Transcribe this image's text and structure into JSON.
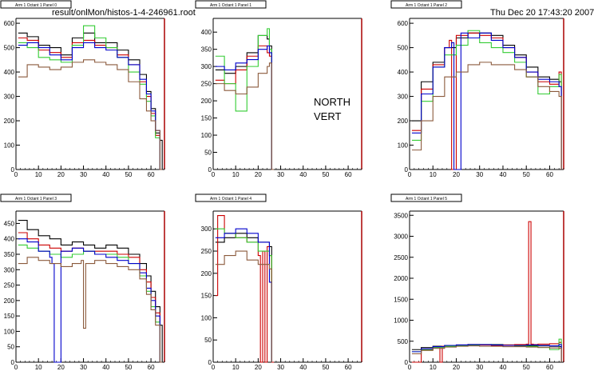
{
  "header": {
    "filename": "result/onlMon/histos-1-4-246961.root",
    "datetime": "Thu Dec 20 17:43:20 2007",
    "label_line1": "NORTH",
    "label_line2": "VERT"
  },
  "colors": {
    "black": "#000000",
    "red": "#cc0000",
    "green": "#33cc33",
    "blue": "#0000cc",
    "brown": "#8b5a3c",
    "frame_right": "#aa0000"
  },
  "chart_data": [
    {
      "type": "line",
      "title": "Arm 1 Octant 1 Panel 0",
      "xlim": [
        0,
        66
      ],
      "ylim": [
        0,
        620
      ],
      "xticks": [
        0,
        10,
        20,
        30,
        40,
        50,
        60
      ],
      "yticks": [
        0,
        100,
        200,
        300,
        400,
        500,
        600
      ],
      "series": [
        {
          "color": "#000000",
          "x": [
            1,
            5,
            10,
            15,
            20,
            25,
            30,
            35,
            40,
            45,
            50,
            55,
            58,
            60,
            62,
            64
          ],
          "y": [
            560,
            545,
            510,
            500,
            470,
            540,
            560,
            520,
            520,
            490,
            450,
            390,
            320,
            250,
            150,
            120
          ]
        },
        {
          "color": "#cc0000",
          "x": [
            1,
            5,
            10,
            15,
            20,
            25,
            30,
            35,
            40,
            45,
            50,
            55,
            58,
            60,
            62,
            64
          ],
          "y": [
            540,
            530,
            490,
            480,
            460,
            520,
            530,
            510,
            500,
            470,
            430,
            360,
            300,
            230,
            140,
            0
          ]
        },
        {
          "color": "#33cc33",
          "x": [
            1,
            5,
            10,
            15,
            20,
            25,
            30,
            35,
            40,
            45,
            50,
            55,
            58,
            60,
            62,
            64
          ],
          "y": [
            520,
            500,
            460,
            450,
            440,
            510,
            590,
            540,
            500,
            460,
            400,
            350,
            280,
            220,
            130,
            0
          ]
        },
        {
          "color": "#0000cc",
          "x": [
            1,
            5,
            10,
            15,
            20,
            25,
            30,
            35,
            40,
            45,
            50,
            55,
            58,
            60,
            62,
            64
          ],
          "y": [
            510,
            520,
            500,
            470,
            450,
            500,
            520,
            500,
            490,
            460,
            430,
            370,
            310,
            240,
            160,
            0
          ]
        },
        {
          "color": "#8b5a3c",
          "x": [
            1,
            5,
            10,
            15,
            20,
            25,
            30,
            35,
            40,
            45,
            50,
            55,
            58,
            60,
            62,
            64
          ],
          "y": [
            380,
            430,
            420,
            410,
            420,
            440,
            450,
            440,
            430,
            410,
            360,
            290,
            240,
            200,
            160,
            0
          ]
        }
      ]
    },
    {
      "type": "line",
      "title": "Arm 1 Octant 1 Panel 1",
      "xlim": [
        0,
        66
      ],
      "ylim": [
        0,
        440
      ],
      "xticks": [
        0,
        10,
        20,
        30,
        40,
        50,
        60
      ],
      "yticks": [
        0,
        50,
        100,
        150,
        200,
        250,
        300,
        350,
        400
      ],
      "series": [
        {
          "color": "#000000",
          "x": [
            1,
            5,
            10,
            15,
            20,
            24,
            25
          ],
          "y": [
            290,
            280,
            300,
            340,
            390,
            380,
            360
          ]
        },
        {
          "color": "#cc0000",
          "x": [
            1,
            5,
            10,
            15,
            20,
            24,
            25
          ],
          "y": [
            260,
            250,
            290,
            330,
            360,
            340,
            330
          ]
        },
        {
          "color": "#33cc33",
          "x": [
            1,
            5,
            10,
            15,
            20,
            24,
            25
          ],
          "y": [
            330,
            250,
            170,
            300,
            390,
            410,
            350
          ]
        },
        {
          "color": "#0000cc",
          "x": [
            1,
            5,
            10,
            15,
            20,
            24,
            25
          ],
          "y": [
            300,
            290,
            310,
            320,
            350,
            360,
            340
          ]
        },
        {
          "color": "#8b5a3c",
          "x": [
            1,
            5,
            10,
            15,
            20,
            24,
            25,
            26
          ],
          "y": [
            250,
            230,
            220,
            240,
            280,
            300,
            310,
            0
          ]
        }
      ]
    },
    {
      "type": "line",
      "title": "Arm 1 Octant 1 Panel 2",
      "xlim": [
        0,
        66
      ],
      "ylim": [
        0,
        620
      ],
      "xticks": [
        0,
        10,
        20,
        30,
        40,
        50,
        60
      ],
      "yticks": [
        0,
        100,
        200,
        300,
        400,
        500,
        600
      ],
      "series": [
        {
          "color": "#000000",
          "x": [
            1,
            5,
            10,
            15,
            20,
            25,
            30,
            35,
            40,
            45,
            50,
            55,
            60,
            64
          ],
          "y": [
            200,
            360,
            440,
            500,
            540,
            560,
            560,
            550,
            510,
            470,
            420,
            380,
            370,
            360
          ]
        },
        {
          "color": "#cc0000",
          "x": [
            1,
            5,
            10,
            15,
            17,
            18,
            20,
            25,
            30,
            35,
            40,
            45,
            50,
            55,
            60,
            64
          ],
          "y": [
            160,
            330,
            430,
            500,
            530,
            0,
            550,
            560,
            550,
            540,
            500,
            460,
            400,
            360,
            350,
            400
          ]
        },
        {
          "color": "#33cc33",
          "x": [
            1,
            5,
            10,
            15,
            20,
            25,
            30,
            35,
            40,
            45,
            50,
            55,
            60,
            64
          ],
          "y": [
            120,
            280,
            420,
            470,
            510,
            570,
            520,
            500,
            480,
            440,
            380,
            310,
            340,
            390
          ]
        },
        {
          "color": "#0000cc",
          "x": [
            1,
            5,
            10,
            15,
            18,
            19,
            20,
            22,
            25,
            30,
            35,
            40,
            45,
            50,
            55,
            60,
            64
          ],
          "y": [
            150,
            310,
            420,
            500,
            520,
            0,
            0,
            560,
            540,
            560,
            530,
            500,
            460,
            400,
            370,
            360,
            340
          ]
        },
        {
          "color": "#8b5a3c",
          "x": [
            1,
            5,
            10,
            15,
            20,
            25,
            30,
            35,
            40,
            45,
            50,
            55,
            60,
            64
          ],
          "y": [
            80,
            200,
            300,
            380,
            400,
            430,
            440,
            430,
            430,
            410,
            380,
            340,
            320,
            300
          ]
        }
      ]
    },
    {
      "type": "line",
      "title": "Arm 1 Octant 1 Panel 3",
      "xlim": [
        0,
        66
      ],
      "ylim": [
        0,
        490
      ],
      "xticks": [
        0,
        10,
        20,
        30,
        40,
        50,
        60
      ],
      "yticks": [
        0,
        50,
        100,
        150,
        200,
        250,
        300,
        350,
        400,
        450
      ],
      "series": [
        {
          "color": "#000000",
          "x": [
            1,
            5,
            10,
            15,
            20,
            25,
            30,
            35,
            40,
            45,
            50,
            55,
            58,
            60,
            62,
            64
          ],
          "y": [
            460,
            430,
            410,
            400,
            380,
            390,
            380,
            370,
            380,
            370,
            350,
            320,
            280,
            230,
            180,
            120
          ]
        },
        {
          "color": "#cc0000",
          "x": [
            1,
            5,
            10,
            15,
            20,
            25,
            30,
            35,
            40,
            45,
            50,
            55,
            58,
            60,
            62,
            64
          ],
          "y": [
            420,
            400,
            380,
            370,
            360,
            370,
            360,
            360,
            360,
            350,
            340,
            300,
            260,
            210,
            160,
            0
          ]
        },
        {
          "color": "#33cc33",
          "x": [
            1,
            5,
            10,
            15,
            20,
            25,
            30,
            35,
            40,
            45,
            50,
            55,
            58,
            60,
            62,
            64
          ],
          "y": [
            380,
            370,
            360,
            350,
            340,
            350,
            360,
            350,
            350,
            340,
            320,
            280,
            230,
            180,
            130,
            0
          ]
        },
        {
          "color": "#0000cc",
          "x": [
            1,
            5,
            10,
            15,
            16,
            17,
            20,
            25,
            30,
            35,
            40,
            45,
            50,
            55,
            58,
            60,
            62,
            64
          ],
          "y": [
            400,
            390,
            360,
            340,
            320,
            0,
            360,
            370,
            360,
            350,
            340,
            330,
            320,
            290,
            240,
            200,
            150,
            0
          ]
        },
        {
          "color": "#8b5a3c",
          "x": [
            1,
            5,
            10,
            15,
            20,
            25,
            29,
            30,
            31,
            35,
            40,
            45,
            50,
            55,
            58,
            60,
            62,
            64
          ],
          "y": [
            320,
            340,
            330,
            320,
            310,
            320,
            330,
            110,
            320,
            330,
            320,
            310,
            300,
            270,
            220,
            170,
            120,
            0
          ]
        }
      ]
    },
    {
      "type": "line",
      "title": "Arm 1 Octant 1 Panel 4",
      "xlim": [
        0,
        66
      ],
      "ylim": [
        0,
        340
      ],
      "xticks": [
        0,
        10,
        20,
        30,
        40,
        50,
        60
      ],
      "yticks": [
        0,
        50,
        100,
        150,
        200,
        250,
        300
      ],
      "series": [
        {
          "color": "#000000",
          "x": [
            1,
            5,
            10,
            15,
            20,
            25
          ],
          "y": [
            270,
            280,
            290,
            280,
            270,
            260
          ]
        },
        {
          "color": "#cc0000",
          "x": [
            1,
            2,
            5,
            10,
            15,
            20,
            21,
            22,
            23,
            24,
            25,
            26
          ],
          "y": [
            150,
            330,
            290,
            280,
            270,
            240,
            0,
            250,
            0,
            260,
            240,
            0
          ]
        },
        {
          "color": "#33cc33",
          "x": [
            1,
            5,
            10,
            15,
            20,
            25
          ],
          "y": [
            300,
            290,
            280,
            270,
            250,
            240
          ]
        },
        {
          "color": "#0000cc",
          "x": [
            1,
            5,
            10,
            15,
            20,
            25
          ],
          "y": [
            280,
            290,
            300,
            290,
            270,
            180
          ]
        },
        {
          "color": "#8b5a3c",
          "x": [
            1,
            5,
            10,
            15,
            20,
            25
          ],
          "y": [
            220,
            240,
            250,
            230,
            220,
            210
          ]
        }
      ]
    },
    {
      "type": "line",
      "title": "Arm 1 Octant 1 Panel 5",
      "xlim": [
        0,
        66
      ],
      "ylim": [
        0,
        3600
      ],
      "xticks": [
        0,
        10,
        20,
        30,
        40,
        50,
        60
      ],
      "yticks": [
        0,
        500,
        1000,
        1500,
        2000,
        2500,
        3000,
        3500
      ],
      "series": [
        {
          "color": "#000000",
          "x": [
            1,
            5,
            10,
            15,
            20,
            25,
            30,
            35,
            40,
            45,
            50,
            55,
            60,
            64
          ],
          "y": [
            300,
            350,
            380,
            400,
            410,
            420,
            410,
            420,
            410,
            400,
            400,
            390,
            380,
            370
          ]
        },
        {
          "color": "#cc0000",
          "x": [
            1,
            5,
            10,
            12,
            13,
            14,
            15,
            20,
            25,
            30,
            35,
            40,
            45,
            50,
            51,
            52,
            53,
            55,
            60,
            64
          ],
          "y": [
            0,
            300,
            350,
            360,
            0,
            380,
            370,
            400,
            420,
            410,
            400,
            410,
            420,
            430,
            3350,
            430,
            420,
            430,
            440,
            470
          ]
        },
        {
          "color": "#33cc33",
          "x": [
            1,
            5,
            10,
            15,
            20,
            25,
            30,
            35,
            40,
            45,
            50,
            55,
            60,
            64
          ],
          "y": [
            250,
            300,
            350,
            380,
            400,
            410,
            420,
            410,
            400,
            390,
            380,
            350,
            300,
            550
          ]
        },
        {
          "color": "#0000cc",
          "x": [
            1,
            5,
            10,
            15,
            20,
            25,
            30,
            35,
            40,
            45,
            50,
            55,
            60,
            64
          ],
          "y": [
            250,
            320,
            370,
            400,
            410,
            420,
            420,
            410,
            400,
            400,
            410,
            400,
            390,
            420
          ]
        },
        {
          "color": "#8b5a3c",
          "x": [
            1,
            5,
            10,
            15,
            20,
            25,
            30,
            35,
            40,
            45,
            50,
            55,
            60,
            64
          ],
          "y": [
            200,
            280,
            330,
            360,
            380,
            390,
            380,
            380,
            370,
            370,
            360,
            350,
            340,
            330
          ]
        }
      ]
    }
  ]
}
